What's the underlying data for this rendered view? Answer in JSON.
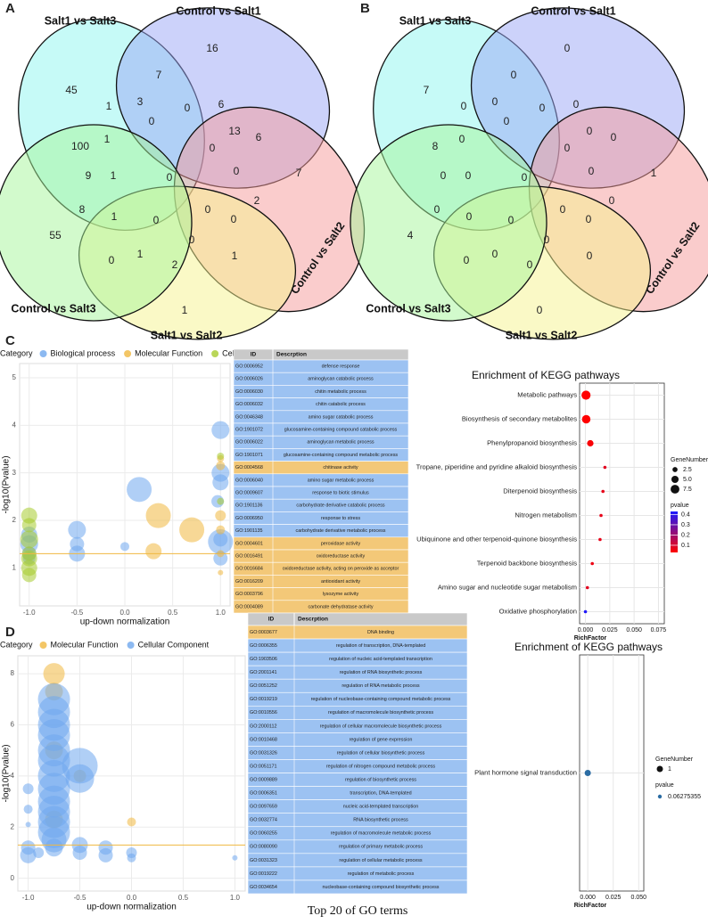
{
  "chart_data": [
    {
      "type": "venn",
      "panel": "A",
      "sets": [
        "Salt1 vs Salt3",
        "Control vs Salt1",
        "Control vs Salt2",
        "Salt1 vs Salt2",
        "Control vs Salt3"
      ],
      "colors": [
        "#8ef5f0",
        "#9aa6f5",
        "#f59a9a",
        "#f6f38e",
        "#a6f59a"
      ],
      "counts": [
        16,
        7,
        45,
        3,
        1,
        6,
        0,
        0,
        13,
        100,
        1,
        6,
        0,
        9,
        1,
        0,
        0,
        7,
        8,
        0,
        2,
        55,
        1,
        0,
        0,
        0,
        0,
        1,
        2,
        1,
        1
      ]
    },
    {
      "type": "venn",
      "panel": "B",
      "sets": [
        "Salt1 vs Salt3",
        "Control vs Salt1",
        "Control vs Salt2",
        "Salt1 vs Salt2",
        "Control vs Salt3"
      ],
      "colors": [
        "#8ef5f0",
        "#9aa6f5",
        "#f59a9a",
        "#f6f38e",
        "#a6f59a"
      ],
      "counts": [
        0,
        0,
        7,
        0,
        0,
        0,
        0,
        0,
        0,
        8,
        0,
        0,
        0,
        0,
        0,
        0,
        0,
        1,
        0,
        0,
        0,
        4,
        0,
        0,
        0,
        0,
        0,
        0,
        0,
        0,
        0
      ]
    },
    {
      "type": "bubble",
      "panel": "C",
      "legend_title": "Category",
      "xlabel": "up-down normalization",
      "ylabel": "-log10(Pvalue)",
      "xlim": [
        -1.1,
        1.1
      ],
      "ylim": [
        0.2,
        5.3
      ],
      "xticks": [
        {
          "value": -1,
          "label": "-1.0"
        },
        -0.5,
        {
          "value": 0,
          "label": "0.0"
        },
        0.5,
        {
          "value": 1,
          "label": "1.0"
        }
      ],
      "yticks": [
        1,
        2,
        3,
        4,
        5
      ],
      "grid": true,
      "threshold": 1.3,
      "threshold_color": "#f0b840",
      "series": [
        {
          "name": "Biological process",
          "color": "#6fa8ee",
          "x": [
            -1,
            -1,
            -1,
            -1,
            -0.5,
            -0.5,
            -0.5,
            0,
            0.15,
            1,
            1,
            1,
            1,
            1,
            1,
            0.97
          ],
          "y": [
            1.5,
            1.3,
            1.7,
            1.2,
            1.8,
            1.5,
            1.3,
            1.45,
            2.65,
            3.9,
            3.0,
            2.8,
            1.55,
            1.2,
            1.6,
            2.4
          ],
          "sizes": [
            10,
            8,
            9,
            7,
            10,
            8,
            9,
            5,
            14,
            10,
            10,
            9,
            14,
            8,
            8,
            7
          ]
        },
        {
          "name": "Molecular Function",
          "color": "#f0b840",
          "x": [
            0.35,
            0.7,
            0.3,
            1,
            1,
            1,
            1,
            1,
            1
          ],
          "y": [
            2.1,
            1.8,
            1.35,
            2.1,
            1.8,
            1.3,
            0.9,
            3.3,
            3.15
          ],
          "sizes": [
            14,
            14,
            9,
            6,
            5,
            4,
            3,
            4,
            5
          ]
        },
        {
          "name": "Cellular Component",
          "color": "#a8cc30",
          "x": [
            -1,
            -1,
            -1,
            -1,
            -1,
            -1,
            -1,
            1,
            1
          ],
          "y": [
            2.1,
            1.9,
            1.6,
            1.3,
            1.0,
            0.85,
            1.2,
            3.35,
            2.4
          ],
          "sizes": [
            9,
            8,
            10,
            8,
            9,
            8,
            9,
            4,
            4
          ]
        }
      ]
    },
    {
      "type": "table",
      "columns": [
        "ID",
        "Descrption"
      ],
      "caption": "Top 20 of GO terms",
      "rows": [
        [
          "GO:0006952",
          "defense response"
        ],
        [
          "GO:0006026",
          "aminoglycan catabolic process"
        ],
        [
          "GO:0006030",
          "chitin metabolic process"
        ],
        [
          "GO:0006032",
          "chitin catabolic process"
        ],
        [
          "GO:0046348",
          "amino sugar catabolic process"
        ],
        [
          "GO:1901072",
          "glucosamine-containing compound catabolic process"
        ],
        [
          "GO:0006022",
          "aminoglycan metabolic process"
        ],
        [
          "GO:1901071",
          "glucosamine-containing compound metabolic process"
        ],
        [
          "GO:0004568",
          "chitinase activity"
        ],
        [
          "GO:0006040",
          "amino sugar metabolic process"
        ],
        [
          "GO:0009607",
          "response to biotic stimulus"
        ],
        [
          "GO:1901136",
          "carbohydrate derivative catabolic process"
        ],
        [
          "GO:0006950",
          "response to stress"
        ],
        [
          "GO:1901135",
          "carbohydrate derivative metabolic process"
        ],
        [
          "GO:0004601",
          "peroxidase activity"
        ],
        [
          "GO:0016491",
          "oxidoreductase activity"
        ],
        [
          "GO:0016684",
          "oxidoreductase activity, acting on peroxide as acceptor"
        ],
        [
          "GO:0016209",
          "antioxidant activity"
        ],
        [
          "GO:0003796",
          "lysozyme activity"
        ],
        [
          "GO:0004089",
          "carbonate dehydratase activity"
        ]
      ],
      "row_colors": [
        "#9cc2f2",
        "#9cc2f2",
        "#9cc2f2",
        "#9cc2f2",
        "#9cc2f2",
        "#9cc2f2",
        "#9cc2f2",
        "#9cc2f2",
        "#f3c878",
        "#9cc2f2",
        "#9cc2f2",
        "#9cc2f2",
        "#9cc2f2",
        "#9cc2f2",
        "#f3c878",
        "#f3c878",
        "#f3c878",
        "#f3c878",
        "#f3c878",
        "#f3c878"
      ]
    },
    {
      "type": "dot",
      "title": "Enrichment of KEGG pathways",
      "xlabel": "RichFactor",
      "categories": [
        "Metabolic pathways",
        "Biosynthesis of secondary metabolites",
        "Phenylpropanoid biosynthesis",
        "Tropane, piperidine and pyridine alkaloid biosynthesis",
        "Diterpenoid biosynthesis",
        "Nitrogen metabolism",
        "Ubiquinone and other terpenoid-quinone biosynthesis",
        "Terpenoid backbone biosynthesis",
        "Amino sugar and nucleotide sugar metabolism",
        "Oxidative phosphorylation"
      ],
      "values": [
        0.0006,
        0.0008,
        0.005,
        0.02,
        0.018,
        0.016,
        0.015,
        0.007,
        0.002,
        0.0
      ],
      "sizes": [
        8,
        7,
        4,
        1,
        1,
        1,
        1,
        1,
        1,
        1
      ],
      "pvalues": [
        0.03,
        0.03,
        0.04,
        0.08,
        0.07,
        0.07,
        0.07,
        0.06,
        0.08,
        0.42
      ],
      "xlim": [
        -0.006,
        0.081
      ],
      "xticks": [
        {
          "value": 0,
          "label": "0.000"
        },
        0.025,
        {
          "value": 0.05,
          "label": "0.050"
        },
        0.075
      ],
      "grid": true,
      "size_legend_title": "GeneNumber",
      "size_legend": [
        2.5,
        {
          "value": 5,
          "label": "5.0"
        },
        7.5
      ],
      "color_legend_title": "pvalue",
      "color_ticks": [
        0.4,
        0.3,
        0.2,
        0.1
      ],
      "color_lim": [
        0.03,
        0.43
      ],
      "low_color": "#ff0000",
      "high_color": "#1a1aff"
    },
    {
      "type": "bubble",
      "panel": "D",
      "legend_title": "Category",
      "xlabel": "up-down normalization",
      "ylabel": "-log10(Pvalue)",
      "xlim": [
        -1.1,
        1.1
      ],
      "ylim": [
        -0.5,
        8.7
      ],
      "xticks": [
        {
          "value": -1,
          "label": "-1.0"
        },
        -0.5,
        {
          "value": 0,
          "label": "0.0"
        },
        0.5,
        {
          "value": 1,
          "label": "1.0"
        }
      ],
      "yticks": [
        0,
        2,
        4,
        6,
        8
      ],
      "grid": true,
      "threshold": 1.3,
      "threshold_color": "#f0b840",
      "series": [
        {
          "name": "Molecular Function",
          "color": "#f0b840",
          "x": [
            -0.75,
            -0.75,
            -0.5,
            0,
            -0.75,
            -0.75
          ],
          "y": [
            8,
            7.3,
            4,
            2.2,
            2.3,
            5
          ],
          "sizes": [
            12,
            10,
            7,
            5,
            10,
            10
          ]
        },
        {
          "name": "Cellular Component",
          "color": "#6fa8ee",
          "x": [
            -0.75,
            -0.75,
            -0.75,
            -0.75,
            -0.75,
            -0.75,
            -0.75,
            -0.75,
            -0.75,
            -0.75,
            -0.75,
            -0.75,
            -0.5,
            -0.5,
            -0.5,
            -0.5,
            -0.75,
            -0.75,
            -1,
            -1,
            -1,
            -1,
            -1,
            -0.25,
            -0.25,
            0,
            0,
            1,
            -0.9
          ],
          "y": [
            7,
            6.5,
            6,
            5.6,
            5,
            4.6,
            4,
            3.5,
            3,
            2.6,
            2.2,
            1.8,
            4.4,
            3.9,
            1.3,
            1.0,
            1.2,
            1.5,
            3.5,
            2.7,
            2.1,
            1.2,
            0.9,
            1.2,
            0.9,
            1.0,
            0.8,
            0.8,
            1.0
          ],
          "sizes": [
            18,
            18,
            18,
            18,
            18,
            18,
            18,
            18,
            18,
            18,
            18,
            18,
            20,
            16,
            9,
            8,
            10,
            14,
            6,
            5,
            3,
            8,
            9,
            8,
            8,
            6,
            5,
            3,
            6
          ]
        }
      ]
    },
    {
      "type": "table",
      "columns": [
        "ID",
        "Descrption"
      ],
      "caption": "Top 20 of GO terms",
      "rows": [
        [
          "GO:0003677",
          "DNA binding"
        ],
        [
          "GO:0006355",
          "regulation of transcription, DNA-templated"
        ],
        [
          "GO:1903506",
          "regulation of nucleic acid-templated transcription"
        ],
        [
          "GO:2001141",
          "regulation of RNA biosynthetic process"
        ],
        [
          "GO:0051252",
          "regulation of RNA metabolic process"
        ],
        [
          "GO:0019219",
          "regulation of nucleobase-containing compound metabolic process"
        ],
        [
          "GO:0010556",
          "regulation of macromolecule biosynthetic process"
        ],
        [
          "GO:2000112",
          "regulation of cellular macromolecule biosynthetic process"
        ],
        [
          "GO:0010468",
          "regulation of gene expression"
        ],
        [
          "GO:0031326",
          "regulation of cellular biosynthetic process"
        ],
        [
          "GO:0051171",
          "regulation of nitrogen compound metabolic process"
        ],
        [
          "GO:0009889",
          "regulation of biosynthetic process"
        ],
        [
          "GO:0006351",
          "transcription, DNA-templated"
        ],
        [
          "GO:0097659",
          "nucleic acid-templated transcription"
        ],
        [
          "GO:0032774",
          "RNA biosynthetic process"
        ],
        [
          "GO:0060255",
          "regulation of macromolecule metabolic process"
        ],
        [
          "GO:0080090",
          "regulation of primary metabolic process"
        ],
        [
          "GO:0031323",
          "regulation of cellular metabolic process"
        ],
        [
          "GO:0019222",
          "regulation of metabolic process"
        ],
        [
          "GO:0034654",
          "nucleobase-containing compound biosynthetic process"
        ]
      ],
      "row_colors": [
        "#f3c878",
        "#9cc2f2",
        "#9cc2f2",
        "#9cc2f2",
        "#9cc2f2",
        "#9cc2f2",
        "#9cc2f2",
        "#9cc2f2",
        "#9cc2f2",
        "#9cc2f2",
        "#9cc2f2",
        "#9cc2f2",
        "#9cc2f2",
        "#9cc2f2",
        "#9cc2f2",
        "#9cc2f2",
        "#9cc2f2",
        "#9cc2f2",
        "#9cc2f2",
        "#9cc2f2"
      ]
    },
    {
      "type": "dot",
      "title": "Enrichment of KEGG pathways",
      "xlabel": "RichFactor",
      "categories": [
        "Plant hormone signal transduction"
      ],
      "values": [
        0.0
      ],
      "sizes": [
        1
      ],
      "pvalues": [
        0.06275355
      ],
      "color": "#2b6ca3",
      "xlim": [
        -0.008,
        0.055
      ],
      "xticks": [
        {
          "value": 0,
          "label": "0.000"
        },
        0.025,
        {
          "value": 0.05,
          "label": "0.050"
        }
      ],
      "grid": true,
      "size_legend_title": "GeneNumber",
      "size_legend": [
        1
      ],
      "color_legend_title": "pvalue",
      "color_legend": [
        0.06275355
      ]
    }
  ]
}
